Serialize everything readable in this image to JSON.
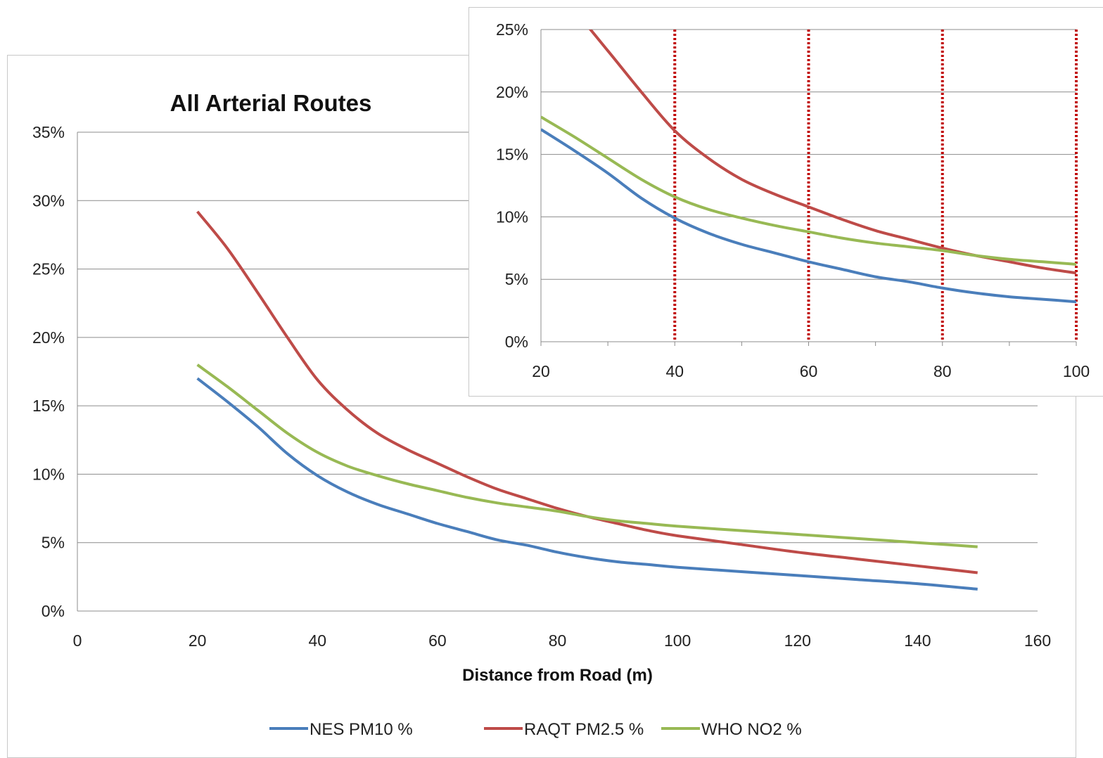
{
  "chart_data": [
    {
      "id": "main",
      "type": "line",
      "title": "All Arterial Routes",
      "xlabel": "Distance from Road (m)",
      "ylabel": "",
      "xlim": [
        0,
        160
      ],
      "ylim": [
        0,
        35
      ],
      "xticks": [
        0,
        20,
        40,
        60,
        80,
        100,
        120,
        140,
        160
      ],
      "yticks": [
        0,
        5,
        10,
        15,
        20,
        25,
        30,
        35
      ],
      "y_format": "percent",
      "grid": "horizontal",
      "legend": "bottom",
      "x": [
        20,
        25,
        30,
        35,
        40,
        45,
        50,
        55,
        60,
        65,
        70,
        75,
        80,
        85,
        90,
        95,
        100,
        110,
        120,
        130,
        140,
        150
      ],
      "series": [
        {
          "name": "NES PM10 %",
          "color": "#4a7ebb",
          "values": [
            17.0,
            15.3,
            13.5,
            11.5,
            9.9,
            8.7,
            7.8,
            7.1,
            6.4,
            5.8,
            5.2,
            4.8,
            4.3,
            3.9,
            3.6,
            3.4,
            3.2,
            2.9,
            2.6,
            2.3,
            2.0,
            1.6
          ]
        },
        {
          "name": "RAQT PM2.5 %",
          "color": "#be4b48",
          "values": [
            29.2,
            26.5,
            23.3,
            20.0,
            16.9,
            14.7,
            13.0,
            11.8,
            10.8,
            9.8,
            8.9,
            8.2,
            7.5,
            6.9,
            6.4,
            5.9,
            5.5,
            4.9,
            4.3,
            3.8,
            3.3,
            2.8
          ]
        },
        {
          "name": "WHO NO2 %",
          "color": "#98b954",
          "values": [
            18.0,
            16.4,
            14.7,
            13.0,
            11.6,
            10.6,
            9.9,
            9.3,
            8.8,
            8.3,
            7.9,
            7.6,
            7.3,
            6.9,
            6.6,
            6.4,
            6.2,
            5.9,
            5.6,
            5.3,
            5.0,
            4.7
          ]
        }
      ]
    },
    {
      "id": "inset",
      "type": "line",
      "title": "",
      "xlabel": "",
      "ylabel": "",
      "xlim": [
        20,
        100
      ],
      "ylim": [
        0,
        25
      ],
      "xticks": [
        20,
        40,
        60,
        80,
        100
      ],
      "yticks": [
        0,
        5,
        10,
        15,
        20,
        25
      ],
      "y_format": "percent",
      "grid": "horizontal",
      "reference_lines_x": [
        40,
        60,
        80,
        100
      ],
      "reference_line_color": "#c00000",
      "x": [
        20,
        25,
        30,
        35,
        40,
        45,
        50,
        55,
        60,
        65,
        70,
        75,
        80,
        85,
        90,
        95,
        100
      ],
      "series": [
        {
          "color": "#4a7ebb",
          "values": [
            17.0,
            15.3,
            13.5,
            11.5,
            9.9,
            8.7,
            7.8,
            7.1,
            6.4,
            5.8,
            5.2,
            4.8,
            4.3,
            3.9,
            3.6,
            3.4,
            3.2
          ]
        },
        {
          "color": "#be4b48",
          "values": [
            29.2,
            26.5,
            23.3,
            20.0,
            16.9,
            14.7,
            13.0,
            11.8,
            10.8,
            9.8,
            8.9,
            8.2,
            7.5,
            6.9,
            6.4,
            5.9,
            5.5
          ]
        },
        {
          "color": "#98b954",
          "values": [
            18.0,
            16.4,
            14.7,
            13.0,
            11.6,
            10.6,
            9.9,
            9.3,
            8.8,
            8.3,
            7.9,
            7.6,
            7.3,
            6.9,
            6.6,
            6.4,
            6.2
          ]
        }
      ]
    }
  ]
}
